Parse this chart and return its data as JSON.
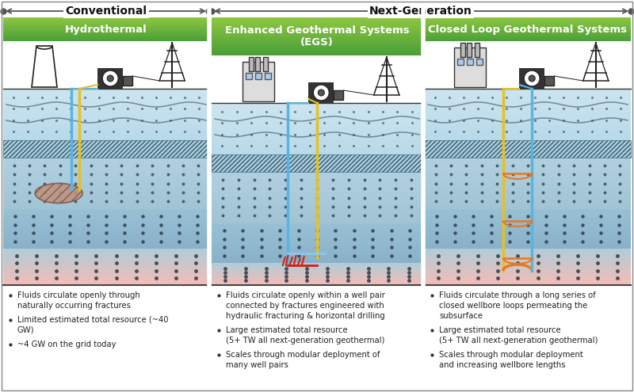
{
  "title_conventional": "Conventional",
  "title_next_gen": "Next-Generation",
  "panel1_title": "Hydrothermal",
  "panel2_title": "Enhanced Geothermal Systems\n(EGS)",
  "panel3_title": "Closed Loop Geothermal Systems",
  "panel1_bullets": [
    "Fluids circulate openly through\nnaturally occurring fractures",
    "Limited estimated total resource (~40\nGW)",
    "~4 GW on the grid today"
  ],
  "panel2_bullets": [
    "Fluids circulate openly within a well pair\nconnected by fractures engineered with\nhydraulic fracturing & horizontal drilling",
    "Large estimated total resource\n(5+ TW all next-generation geothermal)",
    "Scales through modular deployment of\nmany well pairs"
  ],
  "panel3_bullets": [
    "Fluids circulate through a long series of\nclosed wellbore loops permeating the\nsubsurface",
    "Large estimated total resource\n(5+ TW all next-generation geothermal)",
    "Scales through modular deployment\nand increasing wellbore lengths"
  ],
  "panel_green_light": "#8dc63f",
  "panel_green_dark": "#4a9e3a",
  "bg_white": "#ffffff",
  "layer1_color": "#b8d9e8",
  "layer2_color": "#a8cfe0",
  "layer3_color": "#98c4d8",
  "layer_hatch_color": "#90bdd5",
  "layer_bottom_pink": "#f0b8b0",
  "dot_color": "#2a3a45",
  "well_blue": "#5ab4e0",
  "well_yellow": "#e8c020",
  "well_red": "#d42010",
  "well_light_blue": "#90c8e8",
  "well_orange": "#e87820"
}
